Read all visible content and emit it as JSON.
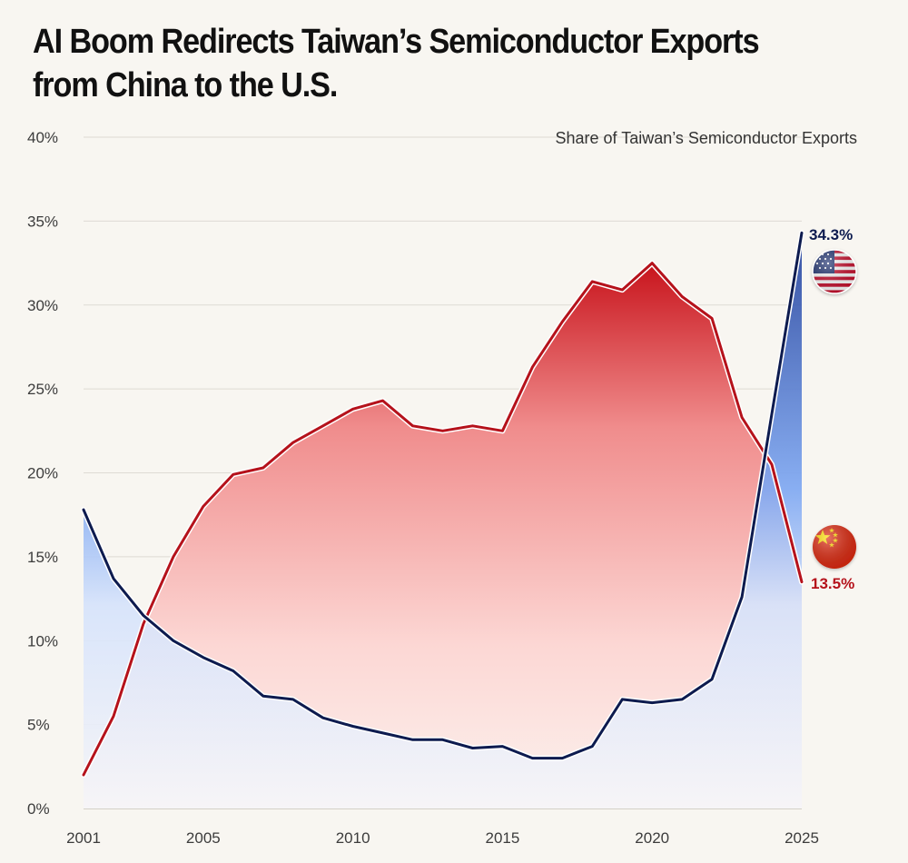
{
  "title_line1": "AI Boom Redirects Taiwan’s Semiconductor Exports",
  "title_line2": "from China to the U.S.",
  "chart_data": {
    "type": "line",
    "title": "AI Boom Redirects Taiwan’s Semiconductor Exports from China to the U.S.",
    "subtitle": "Share of Taiwan’s Semiconductor Exports",
    "xlabel": "",
    "ylabel": "",
    "x": [
      2001,
      2002,
      2003,
      2004,
      2005,
      2006,
      2007,
      2008,
      2009,
      2010,
      2011,
      2012,
      2013,
      2014,
      2015,
      2016,
      2017,
      2018,
      2019,
      2020,
      2021,
      2022,
      2023,
      2024,
      2025
    ],
    "xticks": [
      2001,
      2005,
      2010,
      2015,
      2020,
      2025
    ],
    "xtick_labels": [
      "2001",
      "2005",
      "2010",
      "2015",
      "2020",
      "2025"
    ],
    "ylim": [
      0,
      40
    ],
    "yticks": [
      0,
      5,
      10,
      15,
      20,
      25,
      30,
      35,
      40
    ],
    "ytick_labels": [
      "0%",
      "5%",
      "10%",
      "15%",
      "20%",
      "25%",
      "30%",
      "35%",
      "40%"
    ],
    "grid": true,
    "series": [
      {
        "name": "China",
        "color": "#b5121b",
        "end_label": "13.5%",
        "values": [
          2.0,
          5.5,
          11.0,
          15.0,
          18.0,
          19.9,
          20.3,
          21.8,
          22.8,
          23.8,
          24.3,
          22.8,
          22.5,
          22.8,
          22.5,
          26.3,
          29.0,
          31.4,
          30.9,
          32.5,
          30.5,
          29.2,
          23.3,
          20.5,
          13.5
        ]
      },
      {
        "name": "United States",
        "color": "#0d1b4f",
        "end_label": "34.3%",
        "values": [
          17.8,
          13.7,
          11.5,
          10.0,
          9.0,
          8.2,
          6.7,
          6.5,
          5.4,
          4.9,
          4.5,
          4.1,
          4.1,
          3.6,
          3.7,
          3.0,
          3.0,
          3.7,
          6.5,
          6.3,
          6.5,
          7.7,
          12.6,
          23.5,
          34.3
        ]
      }
    ]
  }
}
